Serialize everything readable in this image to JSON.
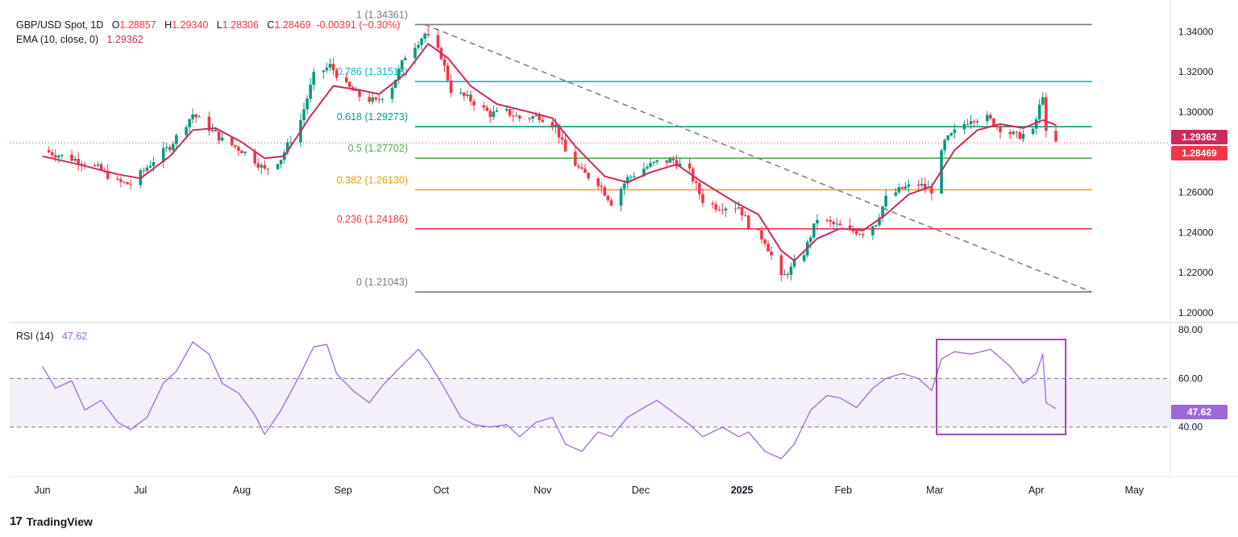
{
  "header": {
    "symbol": "GBP/USD Spot, 1D",
    "o_label": "O",
    "o": "1.28857",
    "h_label": "H",
    "h": "1.29340",
    "l_label": "L",
    "l": "1.28306",
    "c_label": "C",
    "c": "1.28469",
    "change": "-0.00391 (−0.30%)",
    "ema_label": "EMA (10, close, 0)",
    "ema_value": "1.29362"
  },
  "price_tags": {
    "ema": "1.29362",
    "last": "1.28469"
  },
  "rsi": {
    "label": "RSI (14)",
    "value": "47.62",
    "tag": "47.62"
  },
  "colors": {
    "up": "#089981",
    "down": "#f23645",
    "ema": "#cc2a5c",
    "rsi": "#9c6ad6",
    "last_tag": "#f23645",
    "ema_tag": "#cc2a5c",
    "rsi_tag": "#9c6ad6",
    "box": "#9a2fb0"
  },
  "branding": {
    "name": "TradingView"
  },
  "chart_data": [
    {
      "type": "candlestick",
      "title": "GBP/USD Spot, 1D",
      "x_tick_labels": [
        "Jun",
        "Jul",
        "Aug",
        "Sep",
        "Oct",
        "Nov",
        "Dec",
        "2025",
        "Feb",
        "Mar",
        "Apr",
        "May"
      ],
      "y_tick_labels": [
        "1.34000",
        "1.32000",
        "1.30000",
        "1.28000",
        "1.26000",
        "1.24000",
        "1.22000",
        "1.20000"
      ],
      "ylim": [
        1.196,
        1.351
      ],
      "fibonacci_levels": [
        {
          "label": "1 (1.34361)",
          "value": 1.34361,
          "color": "#787b86"
        },
        {
          "label": "0.786 (1.31518)",
          "value": 1.31518,
          "color": "#00bcd4"
        },
        {
          "label": "0.618 (1.29273)",
          "value": 1.29273,
          "color": "#089981"
        },
        {
          "label": "0.5 (1.27702)",
          "value": 1.27702,
          "color": "#4caf50"
        },
        {
          "label": "0.382 (1.26130)",
          "value": 1.2613,
          "color": "#ff9800"
        },
        {
          "label": "0.236 (1.24186)",
          "value": 1.24186,
          "color": "#f23645"
        },
        {
          "label": "0 (1.21043)",
          "value": 1.21043,
          "color": "#787b86"
        }
      ],
      "close_path": [
        [
          "2024-06-01",
          1.281
        ],
        [
          "2024-06-05",
          1.279
        ],
        [
          "2024-06-12",
          1.276
        ],
        [
          "2024-06-18",
          1.272
        ],
        [
          "2024-06-24",
          1.265
        ],
        [
          "2024-06-28",
          1.264
        ],
        [
          "2024-07-05",
          1.276
        ],
        [
          "2024-07-10",
          1.283
        ],
        [
          "2024-07-17",
          1.299
        ],
        [
          "2024-07-22",
          1.292
        ],
        [
          "2024-07-26",
          1.286
        ],
        [
          "2024-08-01",
          1.281
        ],
        [
          "2024-08-05",
          1.276
        ],
        [
          "2024-08-08",
          1.271
        ],
        [
          "2024-08-13",
          1.277
        ],
        [
          "2024-08-19",
          1.296
        ],
        [
          "2024-08-23",
          1.318
        ],
        [
          "2024-08-28",
          1.323
        ],
        [
          "2024-09-02",
          1.313
        ],
        [
          "2024-09-06",
          1.308
        ],
        [
          "2024-09-11",
          1.305
        ],
        [
          "2024-09-16",
          1.313
        ],
        [
          "2024-09-20",
          1.328
        ],
        [
          "2024-09-26",
          1.339
        ],
        [
          "2024-10-01",
          1.328
        ],
        [
          "2024-10-04",
          1.311
        ],
        [
          "2024-10-10",
          1.306
        ],
        [
          "2024-10-16",
          1.299
        ],
        [
          "2024-10-21",
          1.3
        ],
        [
          "2024-10-25",
          1.297
        ],
        [
          "2024-10-31",
          1.298
        ],
        [
          "2024-11-05",
          1.293
        ],
        [
          "2024-11-08",
          1.28
        ],
        [
          "2024-11-13",
          1.27
        ],
        [
          "2024-11-18",
          1.265
        ],
        [
          "2024-11-22",
          1.255
        ],
        [
          "2024-11-27",
          1.267
        ],
        [
          "2024-12-02",
          1.272
        ],
        [
          "2024-12-06",
          1.275
        ],
        [
          "2024-12-11",
          1.276
        ],
        [
          "2024-12-16",
          1.27
        ],
        [
          "2024-12-20",
          1.256
        ],
        [
          "2024-12-24",
          1.253
        ],
        [
          "2024-12-31",
          1.253
        ],
        [
          "2025-01-03",
          1.244
        ],
        [
          "2025-01-08",
          1.236
        ],
        [
          "2025-01-13",
          1.217
        ],
        [
          "2025-01-16",
          1.222
        ],
        [
          "2025-01-20",
          1.23
        ],
        [
          "2025-01-24",
          1.247
        ],
        [
          "2025-01-29",
          1.244
        ],
        [
          "2025-02-03",
          1.241
        ],
        [
          "2025-02-07",
          1.24
        ],
        [
          "2025-02-11",
          1.245
        ],
        [
          "2025-02-14",
          1.257
        ],
        [
          "2025-02-19",
          1.262
        ],
        [
          "2025-02-24",
          1.264
        ],
        [
          "2025-02-28",
          1.261
        ],
        [
          "2025-03-04",
          1.285
        ],
        [
          "2025-03-07",
          1.29
        ],
        [
          "2025-03-12",
          1.297
        ],
        [
          "2025-03-17",
          1.297
        ],
        [
          "2025-03-21",
          1.292
        ],
        [
          "2025-03-26",
          1.288
        ],
        [
          "2025-03-31",
          1.29
        ],
        [
          "2025-04-03",
          1.309
        ],
        [
          "2025-04-04",
          1.289
        ],
        [
          "2025-04-07",
          1.2847
        ]
      ],
      "ema_path": [
        [
          "2024-06-01",
          1.278
        ],
        [
          "2024-06-12",
          1.274
        ],
        [
          "2024-06-24",
          1.269
        ],
        [
          "2024-07-01",
          1.267
        ],
        [
          "2024-07-10",
          1.278
        ],
        [
          "2024-07-17",
          1.291
        ],
        [
          "2024-07-24",
          1.292
        ],
        [
          "2024-08-01",
          1.285
        ],
        [
          "2024-08-08",
          1.277
        ],
        [
          "2024-08-14",
          1.278
        ],
        [
          "2024-08-22",
          1.298
        ],
        [
          "2024-08-29",
          1.313
        ],
        [
          "2024-09-06",
          1.311
        ],
        [
          "2024-09-12",
          1.309
        ],
        [
          "2024-09-20",
          1.319
        ],
        [
          "2024-09-27",
          1.334
        ],
        [
          "2024-10-03",
          1.327
        ],
        [
          "2024-10-10",
          1.313
        ],
        [
          "2024-10-18",
          1.304
        ],
        [
          "2024-10-28",
          1.3
        ],
        [
          "2024-11-04",
          1.297
        ],
        [
          "2024-11-11",
          1.283
        ],
        [
          "2024-11-20",
          1.268
        ],
        [
          "2024-11-27",
          1.265
        ],
        [
          "2024-12-04",
          1.27
        ],
        [
          "2024-12-12",
          1.274
        ],
        [
          "2024-12-19",
          1.266
        ],
        [
          "2024-12-30",
          1.255
        ],
        [
          "2025-01-06",
          1.249
        ],
        [
          "2025-01-13",
          1.231
        ],
        [
          "2025-01-17",
          1.226
        ],
        [
          "2025-01-24",
          1.237
        ],
        [
          "2025-01-31",
          1.242
        ],
        [
          "2025-02-07",
          1.241
        ],
        [
          "2025-02-14",
          1.249
        ],
        [
          "2025-02-21",
          1.259
        ],
        [
          "2025-02-28",
          1.263
        ],
        [
          "2025-03-07",
          1.281
        ],
        [
          "2025-03-14",
          1.291
        ],
        [
          "2025-03-21",
          1.294
        ],
        [
          "2025-03-28",
          1.292
        ],
        [
          "2025-04-03",
          1.296
        ],
        [
          "2025-04-07",
          1.2936
        ]
      ],
      "trendline": [
        [
          "2024-09-26",
          1.3436
        ],
        [
          "2025-04-18",
          1.2104
        ]
      ]
    },
    {
      "type": "line",
      "title": "RSI (14)",
      "y_tick_labels": [
        "80.00",
        "60.00",
        "40.00"
      ],
      "ylim": [
        20,
        83
      ],
      "bands": [
        60,
        40
      ],
      "series": [
        {
          "name": "RSI (14)",
          "points": [
            [
              "2024-06-01",
              65
            ],
            [
              "2024-06-05",
              56
            ],
            [
              "2024-06-10",
              59
            ],
            [
              "2024-06-14",
              47
            ],
            [
              "2024-06-19",
              51
            ],
            [
              "2024-06-24",
              42
            ],
            [
              "2024-06-28",
              39
            ],
            [
              "2024-07-03",
              44
            ],
            [
              "2024-07-08",
              58
            ],
            [
              "2024-07-12",
              63
            ],
            [
              "2024-07-17",
              75
            ],
            [
              "2024-07-22",
              70
            ],
            [
              "2024-07-26",
              58
            ],
            [
              "2024-07-31",
              54
            ],
            [
              "2024-08-05",
              45
            ],
            [
              "2024-08-08",
              37
            ],
            [
              "2024-08-13",
              47
            ],
            [
              "2024-08-19",
              62
            ],
            [
              "2024-08-23",
              73
            ],
            [
              "2024-08-27",
              74
            ],
            [
              "2024-08-30",
              62
            ],
            [
              "2024-09-04",
              55
            ],
            [
              "2024-09-09",
              50
            ],
            [
              "2024-09-13",
              57
            ],
            [
              "2024-09-18",
              64
            ],
            [
              "2024-09-24",
              72
            ],
            [
              "2024-09-27",
              67
            ],
            [
              "2024-10-02",
              56
            ],
            [
              "2024-10-07",
              44
            ],
            [
              "2024-10-11",
              41
            ],
            [
              "2024-10-16",
              40
            ],
            [
              "2024-10-21",
              41
            ],
            [
              "2024-10-25",
              36
            ],
            [
              "2024-10-30",
              42
            ],
            [
              "2024-11-04",
              44
            ],
            [
              "2024-11-08",
              33
            ],
            [
              "2024-11-13",
              30
            ],
            [
              "2024-11-18",
              38
            ],
            [
              "2024-11-22",
              36
            ],
            [
              "2024-11-27",
              44
            ],
            [
              "2024-12-02",
              48
            ],
            [
              "2024-12-06",
              51
            ],
            [
              "2024-12-11",
              46
            ],
            [
              "2024-12-16",
              41
            ],
            [
              "2024-12-20",
              36
            ],
            [
              "2024-12-26",
              40
            ],
            [
              "2024-12-31",
              36
            ],
            [
              "2025-01-03",
              38
            ],
            [
              "2025-01-08",
              30
            ],
            [
              "2025-01-13",
              27
            ],
            [
              "2025-01-17",
              33
            ],
            [
              "2025-01-22",
              47
            ],
            [
              "2025-01-27",
              53
            ],
            [
              "2025-01-31",
              52
            ],
            [
              "2025-02-05",
              48
            ],
            [
              "2025-02-10",
              56
            ],
            [
              "2025-02-14",
              60
            ],
            [
              "2025-02-19",
              62
            ],
            [
              "2025-02-24",
              60
            ],
            [
              "2025-02-28",
              55
            ],
            [
              "2025-03-03",
              68
            ],
            [
              "2025-03-07",
              71
            ],
            [
              "2025-03-12",
              70
            ],
            [
              "2025-03-18",
              72
            ],
            [
              "2025-03-24",
              65
            ],
            [
              "2025-03-28",
              58
            ],
            [
              "2025-04-01",
              62
            ],
            [
              "2025-04-03",
              70
            ],
            [
              "2025-04-04",
              50
            ],
            [
              "2025-04-07",
              47.62
            ]
          ]
        }
      ],
      "highlight_box": {
        "x_from": "2025-03-03",
        "x_to": "2025-04-10",
        "y_from": 37,
        "y_to": 76
      }
    }
  ]
}
